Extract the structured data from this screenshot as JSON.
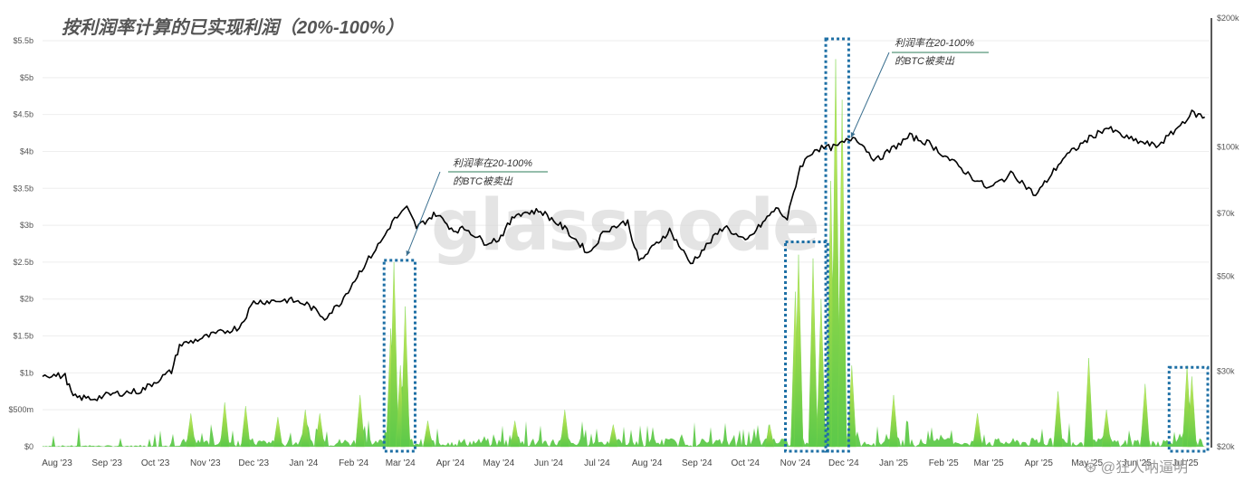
{
  "chart_data": {
    "type": "line",
    "title": "按利润率计算的已实现利润（20%-100%）",
    "x_ticks": [
      "Aug '23",
      "Sep '23",
      "Oct '23",
      "Nov '23",
      "Dec '23",
      "Jan '24",
      "Feb '24",
      "Mar '24",
      "Apr '24",
      "May '24",
      "Jun '24",
      "Jul '24",
      "Aug '24",
      "Sep '24",
      "Oct '24",
      "Nov '24",
      "Dec '24",
      "Jan '25",
      "Feb '25",
      "Mar '25",
      "Apr '25",
      "May '25",
      "Jun '25",
      "Jul '25"
    ],
    "y_left_ticks": [
      "$0",
      "$500m",
      "$1b",
      "$1.5b",
      "$2b",
      "$2.5b",
      "$3b",
      "$3.5b",
      "$4b",
      "$4.5b",
      "$5b",
      "$5.5b"
    ],
    "y_left_range": [
      0,
      5.5
    ],
    "y_right_ticks": [
      "$20k",
      "$30k",
      "$50k",
      "$70k",
      "$100k",
      "$200k"
    ],
    "y_right_scale": "log",
    "y_right_range": [
      20000,
      200000
    ],
    "series": [
      {
        "type": "line",
        "axis": "right",
        "color": "#000000",
        "x": [
          "2023-08-01",
          "2023-08-15",
          "2023-08-20",
          "2023-09-01",
          "2023-09-15",
          "2023-10-01",
          "2023-10-20",
          "2023-10-25",
          "2023-11-15",
          "2023-12-01",
          "2023-12-10",
          "2024-01-01",
          "2024-01-12",
          "2024-01-23",
          "2024-02-01",
          "2024-02-15",
          "2024-02-28",
          "2024-03-05",
          "2024-03-14",
          "2024-03-20",
          "2024-04-01",
          "2024-04-12",
          "2024-04-20",
          "2024-05-01",
          "2024-05-10",
          "2024-05-21",
          "2024-06-05",
          "2024-06-20",
          "2024-07-05",
          "2024-07-15",
          "2024-07-29",
          "2024-08-05",
          "2024-08-24",
          "2024-09-06",
          "2024-09-27",
          "2024-10-10",
          "2024-10-29",
          "2024-11-05",
          "2024-11-13",
          "2024-11-22",
          "2024-12-05",
          "2024-12-17",
          "2024-12-30",
          "2025-01-20",
          "2025-02-01",
          "2025-02-28",
          "2025-03-10",
          "2025-03-25",
          "2025-04-08",
          "2025-04-25",
          "2025-05-10",
          "2025-05-22",
          "2025-06-05",
          "2025-06-22",
          "2025-07-01",
          "2025-07-14",
          "2025-07-22"
        ],
        "values": [
          29500,
          29200,
          26100,
          25900,
          26600,
          27000,
          30000,
          34500,
          36500,
          38000,
          43500,
          44000,
          43000,
          40000,
          43000,
          52000,
          61000,
          67000,
          72000,
          65000,
          70000,
          64000,
          64500,
          60000,
          61000,
          70000,
          71000,
          64500,
          56500,
          64000,
          67000,
          54000,
          64000,
          53500,
          65500,
          60000,
          72000,
          68000,
          90000,
          99000,
          100000,
          106000,
          93000,
          106000,
          102000,
          85000,
          80000,
          87000,
          77000,
          94000,
          104000,
          111000,
          104500,
          100500,
          107000,
          120000,
          117500
        ]
      },
      {
        "type": "area",
        "axis": "left",
        "color": "#7ed957",
        "spikes": [
          {
            "x": "2023-11-01",
            "value": 0.45
          },
          {
            "x": "2023-11-22",
            "value": 0.6
          },
          {
            "x": "2023-12-05",
            "value": 0.55
          },
          {
            "x": "2023-12-25",
            "value": 0.4
          },
          {
            "x": "2024-01-11",
            "value": 0.5
          },
          {
            "x": "2024-01-20",
            "value": 0.45
          },
          {
            "x": "2024-02-14",
            "value": 0.7
          },
          {
            "x": "2024-03-04",
            "value": 1.6
          },
          {
            "x": "2024-03-06",
            "value": 2.5
          },
          {
            "x": "2024-03-10",
            "value": 1.1
          },
          {
            "x": "2024-03-13",
            "value": 1.9
          },
          {
            "x": "2024-03-27",
            "value": 0.35
          },
          {
            "x": "2024-05-20",
            "value": 0.35
          },
          {
            "x": "2024-06-20",
            "value": 0.5
          },
          {
            "x": "2024-07-20",
            "value": 0.3
          },
          {
            "x": "2024-10-25",
            "value": 0.3
          },
          {
            "x": "2024-11-10",
            "value": 2.1
          },
          {
            "x": "2024-11-12",
            "value": 2.6
          },
          {
            "x": "2024-11-21",
            "value": 2.55
          },
          {
            "x": "2024-11-26",
            "value": 2.0
          },
          {
            "x": "2024-12-02",
            "value": 3.6
          },
          {
            "x": "2024-12-05",
            "value": 5.25
          },
          {
            "x": "2024-12-09",
            "value": 4.7
          },
          {
            "x": "2024-12-15",
            "value": 1.1
          },
          {
            "x": "2025-01-10",
            "value": 0.7
          },
          {
            "x": "2025-03-03",
            "value": 0.45
          },
          {
            "x": "2025-04-22",
            "value": 0.75
          },
          {
            "x": "2025-05-11",
            "value": 1.2
          },
          {
            "x": "2025-05-22",
            "value": 0.5
          },
          {
            "x": "2025-06-15",
            "value": 0.85
          },
          {
            "x": "2025-07-11",
            "value": 1.1
          },
          {
            "x": "2025-07-14",
            "value": 0.95
          }
        ]
      }
    ],
    "annotations": [
      {
        "line1": "利润率在20-100%",
        "line2": "的BTC被卖出",
        "target": "2024-03"
      },
      {
        "line1": "利润率在20-100%",
        "line2": "的BTC被卖出",
        "target": "2024-12"
      }
    ],
    "highlight_boxes": [
      "2024-03",
      "2024-11",
      "2024-12",
      "2025-07"
    ],
    "grid": true,
    "legend": "none"
  },
  "watermark": "glassnode",
  "source_watermark": "⊛ @狂人呐逼明"
}
